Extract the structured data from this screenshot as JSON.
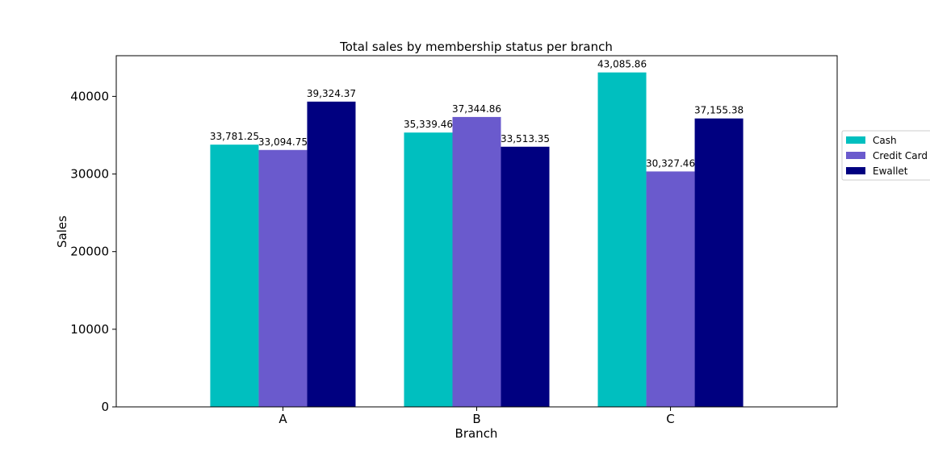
{
  "chart_data": {
    "type": "bar",
    "title": "Total sales by membership status per branch",
    "xlabel": "Branch",
    "ylabel": "Sales",
    "categories": [
      "A",
      "B",
      "C"
    ],
    "series": [
      {
        "name": "Cash",
        "color": "#00BFBF",
        "values": [
          33781.25,
          35339.46,
          43085.86
        ],
        "labels": [
          "33,781.25",
          "35,339.46",
          "43,085.86"
        ]
      },
      {
        "name": "Credit Card",
        "color": "#6A5ACD",
        "values": [
          33094.75,
          37344.86,
          30327.46
        ],
        "labels": [
          "33,094.75",
          "37,344.86",
          "30,327.46"
        ]
      },
      {
        "name": "Ewallet",
        "color": "#000080",
        "values": [
          39324.37,
          33513.35,
          37155.38
        ],
        "labels": [
          "39,324.37",
          "33,513.35",
          "37,155.38"
        ]
      }
    ],
    "ylim": [
      0,
      45240
    ],
    "yticks": [
      0,
      10000,
      20000,
      30000,
      40000
    ],
    "ytick_labels": [
      "0",
      "10000",
      "20000",
      "30000",
      "40000"
    ],
    "grid": false,
    "legend_position": "outside-right"
  }
}
